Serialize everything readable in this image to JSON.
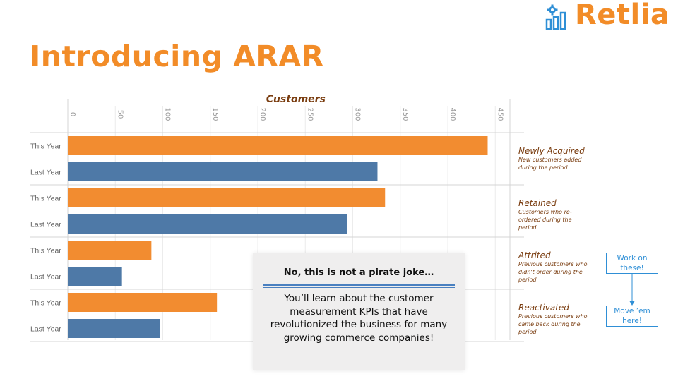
{
  "brand": {
    "name": "Retlia",
    "color": "#F28C28",
    "logo_icon": "gear-bar-chart-icon"
  },
  "slide": {
    "title": "Introducing ARAR"
  },
  "chart_data": {
    "type": "bar",
    "orientation": "horizontal",
    "title": "Customers",
    "xlim": [
      0,
      470
    ],
    "x_ticks": [
      "0",
      "50",
      "100",
      "150",
      "200",
      "250",
      "300",
      "350",
      "400",
      "450"
    ],
    "grid": true,
    "row_labels": [
      "This Year",
      "Last Year"
    ],
    "groups": [
      {
        "name": "Newly Acquired",
        "description": "New customers added during the period",
        "this_year": 442,
        "last_year": 326
      },
      {
        "name": "Retained",
        "description": "Customers who re-ordered during the period",
        "this_year": 334,
        "last_year": 294
      },
      {
        "name": "Attrited",
        "description": "Previous customers who didn't order during the period",
        "this_year": 88,
        "last_year": 57
      },
      {
        "name": "Reactivated",
        "description": "Previous customers who came back during the period",
        "this_year": 157,
        "last_year": 97
      }
    ],
    "colors": {
      "this_year": "#F28C30",
      "last_year": "#4E79A7"
    }
  },
  "callout": {
    "title": "No, this is not a pirate joke…",
    "body": "You’ll learn about the customer measurement KPIs that have revolutionized the business for many growing commerce companies!"
  },
  "notes": {
    "work_on": "Work on these!",
    "move_em": "Move ’em here!"
  }
}
